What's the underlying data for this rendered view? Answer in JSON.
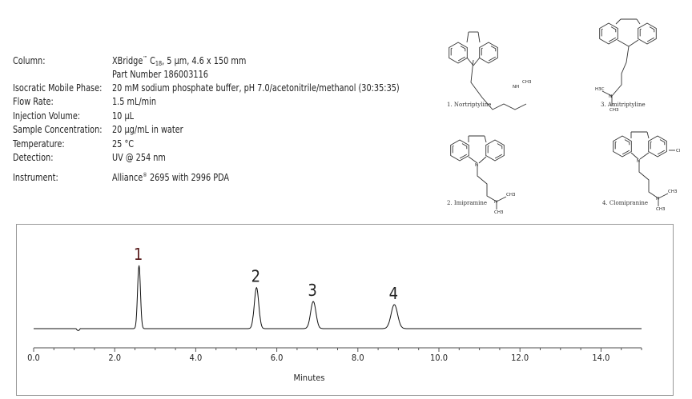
{
  "conditions": [
    {
      "label": "Column:",
      "value": "XBridge",
      "value_sup": "™",
      "value_mid": " C",
      "value_sub": "18",
      "value_tail": ", 5 µm, 4.6 x 150 mm"
    },
    {
      "label": "",
      "value": "Part Number 186003116"
    },
    {
      "label": "Isocratic Mobile Phase:",
      "value": "20 mM sodium phosphate buffer, pH 7.0/acetonitrile/methanol (30:35:35)"
    },
    {
      "label": "Flow Rate:",
      "value": "1.5 mL/min"
    },
    {
      "label": "Injection Volume:",
      "value": "10 µL"
    },
    {
      "label": "Sample Concentration:",
      "value": "20 µg/mL in water"
    },
    {
      "label": "Temperature:",
      "value": "25 °C"
    },
    {
      "label": "Detection:",
      "value": "UV @ 254 nm"
    },
    {
      "label": "Instrument:",
      "value": "Alliance",
      "value_sup": "®",
      "value_tail": " 2695 with 2996 PDA"
    }
  ],
  "compounds": [
    {
      "caption": "1. Nortriptyline",
      "atoms": [
        "NH",
        "CH3"
      ]
    },
    {
      "caption": "2. Imipramine",
      "atoms": [
        "N",
        "N",
        "CH3",
        "CH3"
      ]
    },
    {
      "caption": "3. Amitriptyline",
      "atoms": [
        "H3C",
        "N",
        "CH3"
      ]
    },
    {
      "caption": "4. Clomipranine",
      "atoms": [
        "N",
        "Cl",
        "N",
        "CH3",
        "CH3"
      ]
    }
  ],
  "chart_data": {
    "type": "line",
    "xlabel": "Minutes",
    "xlim": [
      0,
      15
    ],
    "xticks": [
      "0.0",
      "2.0",
      "4.0",
      "6.0",
      "8.0",
      "10.0",
      "12.0",
      "14.0"
    ],
    "y_axis_shown": false,
    "peaks": [
      {
        "label": "1",
        "retention_time": 2.6,
        "relative_height": 1.0
      },
      {
        "label": "2",
        "retention_time": 5.5,
        "relative_height": 0.65
      },
      {
        "label": "3",
        "retention_time": 6.9,
        "relative_height": 0.43
      },
      {
        "label": "4",
        "retention_time": 8.9,
        "relative_height": 0.38
      }
    ],
    "colors": {
      "trace": "#111111",
      "peak_label_1": "#5a1e1e",
      "peak_labels": "#222222",
      "axis": "#888888"
    }
  }
}
